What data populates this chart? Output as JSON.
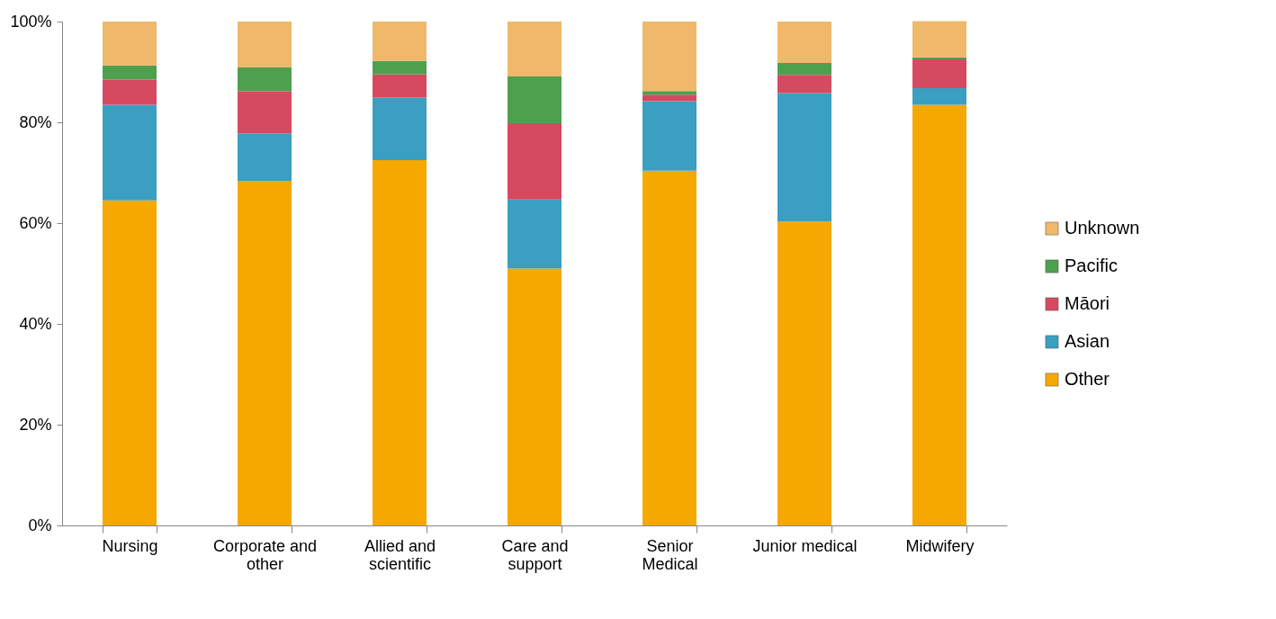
{
  "chart_data": {
    "type": "bar",
    "stacked": true,
    "categories": [
      "Nursing",
      "Corporate and other",
      "Allied and scientific",
      "Care and support",
      "Senior Medical",
      "Junior medical",
      "Midwifery"
    ],
    "series": [
      {
        "name": "Other",
        "color": "#f5a800",
        "values": [
          64.5,
          68.4,
          72.5,
          51.0,
          70.4,
          60.3,
          83.5
        ]
      },
      {
        "name": "Asian",
        "color": "#3a9fc0",
        "values": [
          19.0,
          9.4,
          12.4,
          13.7,
          13.8,
          25.5,
          3.3
        ]
      },
      {
        "name": "Māori",
        "color": "#d54a60",
        "values": [
          5.0,
          8.3,
          4.6,
          15.1,
          1.3,
          3.6,
          5.7
        ]
      },
      {
        "name": "Pacific",
        "color": "#4ea04e",
        "values": [
          2.8,
          4.8,
          2.7,
          9.3,
          0.7,
          2.4,
          0.4
        ]
      },
      {
        "name": "Unknown",
        "color": "#f0b86a",
        "values": [
          8.7,
          9.1,
          7.8,
          10.9,
          13.8,
          8.2,
          7.2
        ]
      }
    ],
    "ylim": [
      0,
      100
    ],
    "yticks": [
      {
        "value": 0,
        "label": "0%"
      },
      {
        "value": 20,
        "label": "20%"
      },
      {
        "value": 40,
        "label": "40%"
      },
      {
        "value": 60,
        "label": "60%"
      },
      {
        "value": 80,
        "label": "80%"
      },
      {
        "value": 100,
        "label": "100%"
      }
    ],
    "grid": false,
    "legend": "right"
  }
}
